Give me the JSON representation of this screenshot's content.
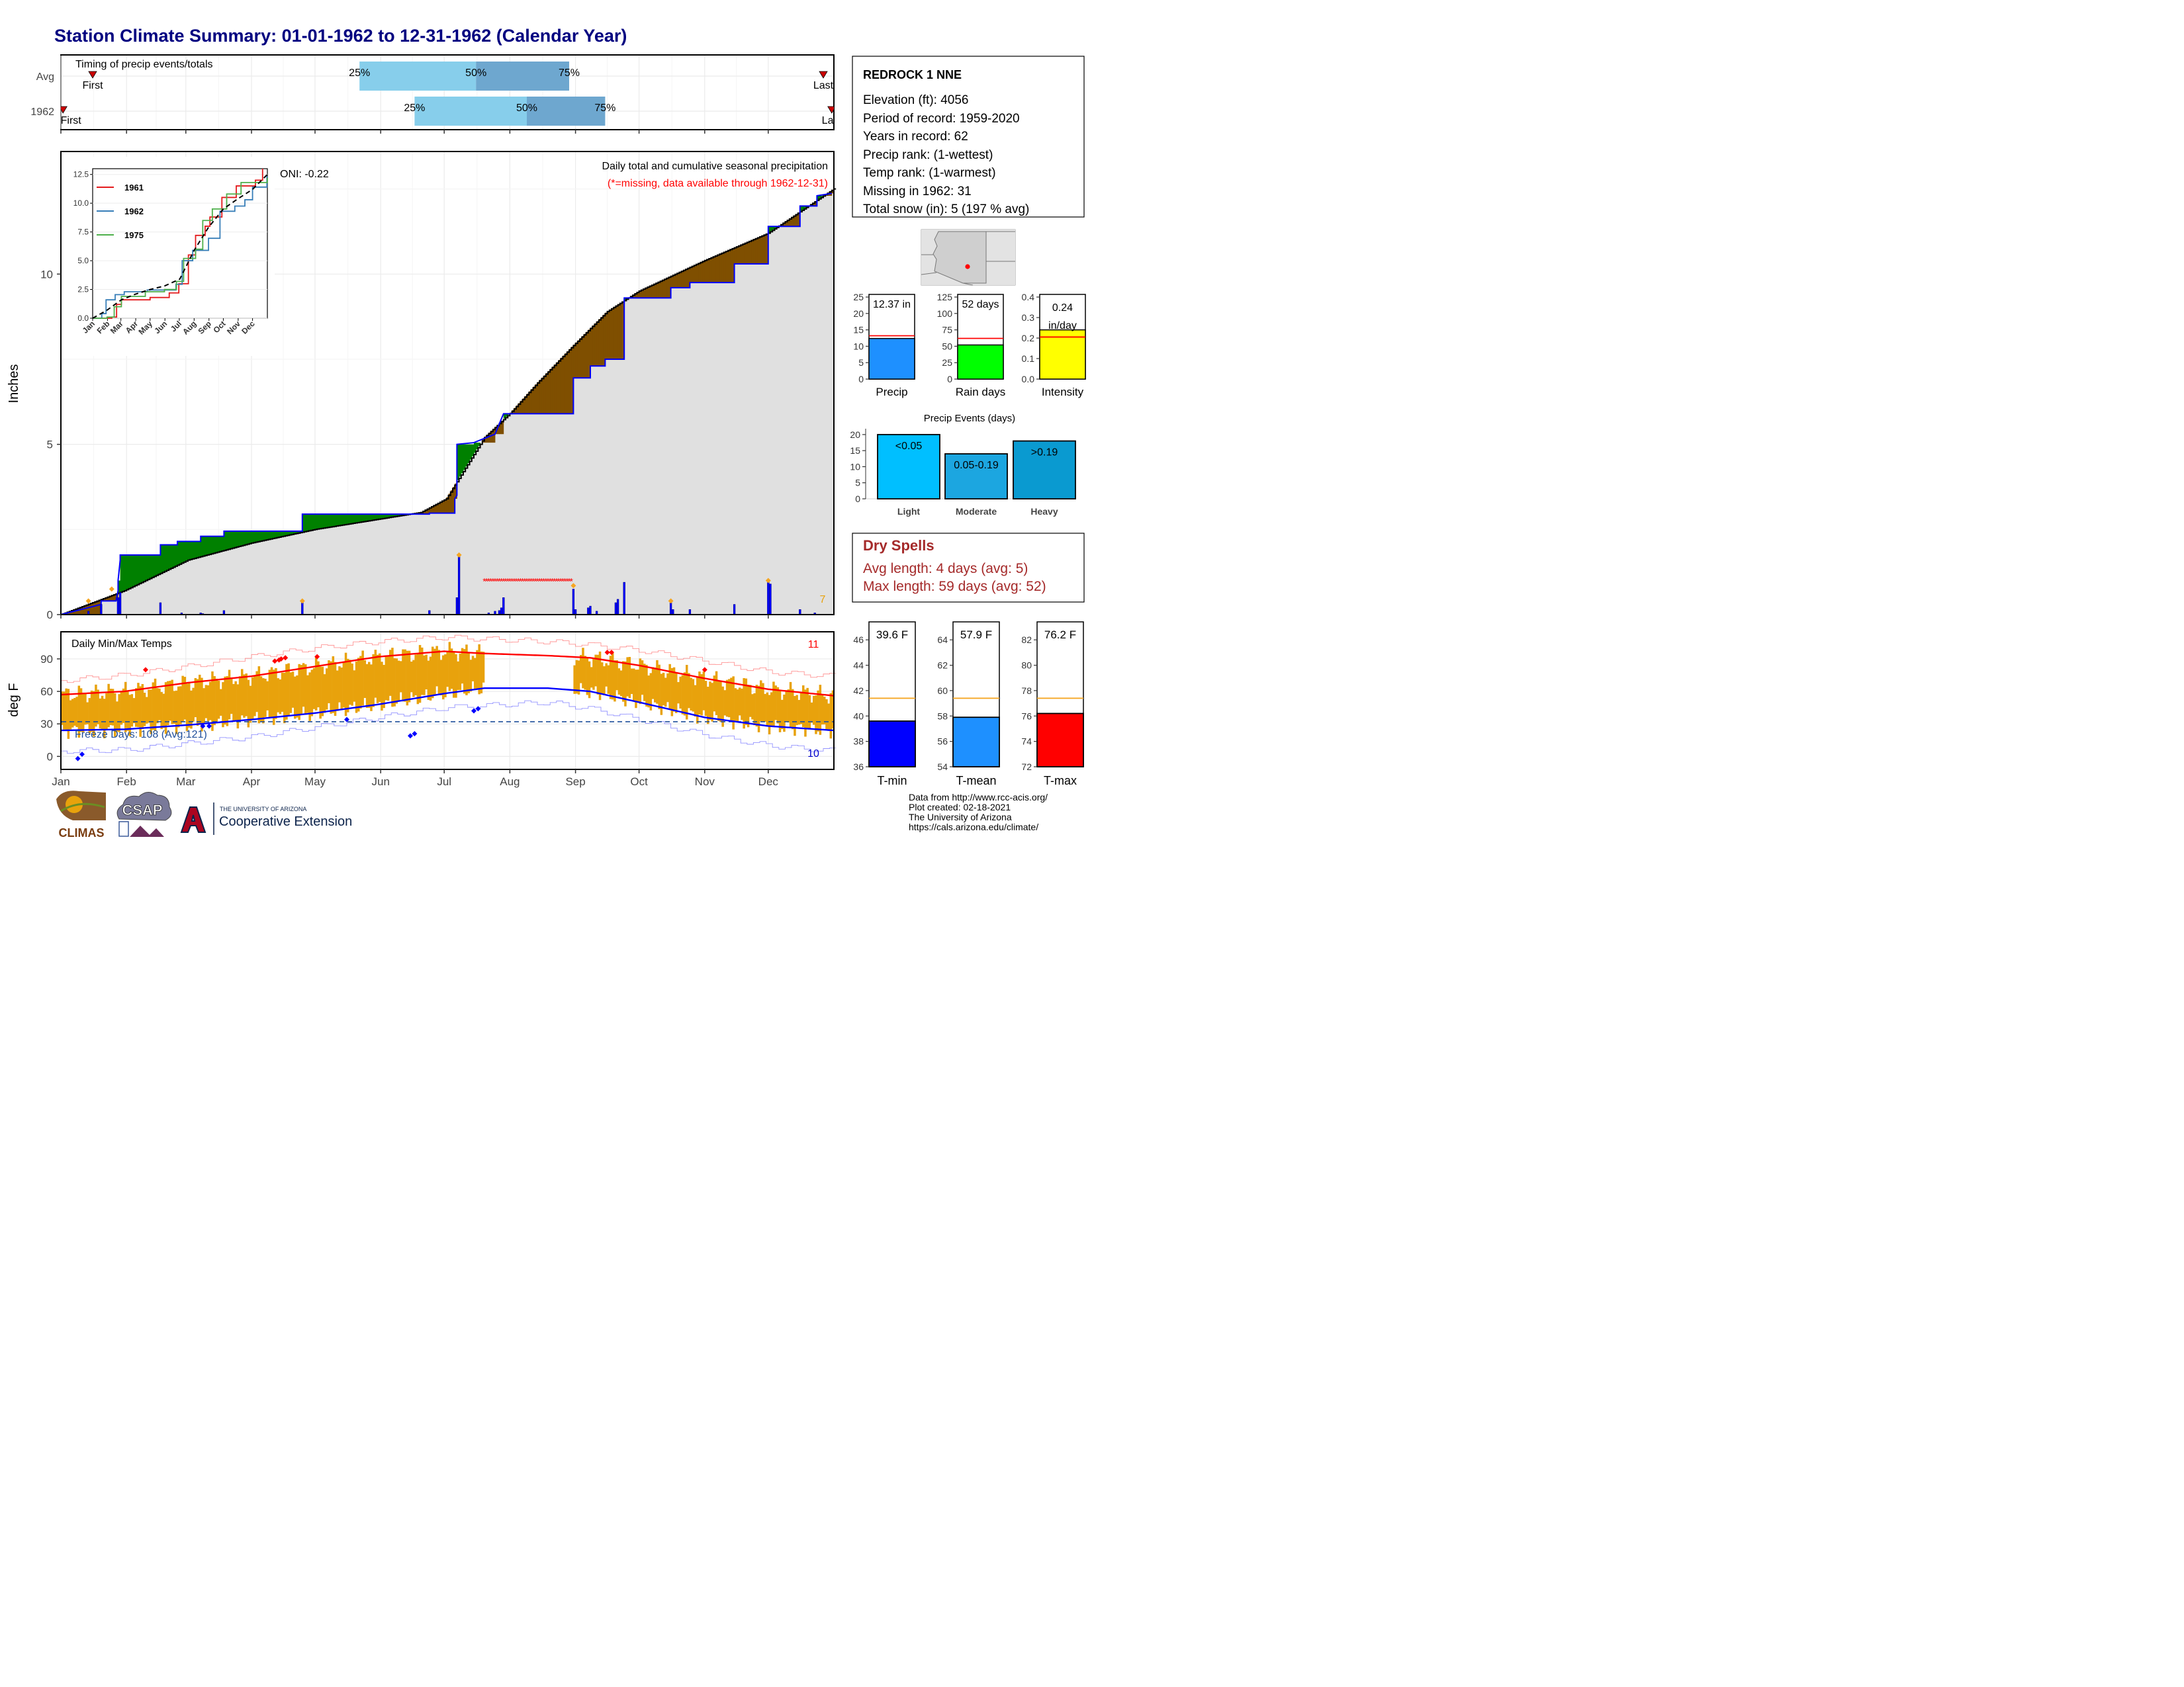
{
  "title": "Station Climate Summary: 01-01-1962 to 12-31-1962 (Calendar Year)",
  "timing": {
    "panel_title": "Timing of precip events/totals",
    "rows": [
      {
        "label": "Avg",
        "first_day": 15,
        "last_day": 360,
        "p25": 141,
        "p50": 196,
        "p75": 240,
        "first_label": "First",
        "last_label": "Last",
        "p25_label": "25%",
        "p50_label": "50%",
        "p75_label": "75%"
      },
      {
        "label": "1962",
        "first_day": 1,
        "last_day": 364,
        "p25": 167,
        "p50": 220,
        "p75": 257,
        "first_label": "First",
        "last_label": "Last",
        "p25_label": "25%",
        "p50_label": "50%",
        "p75_label": "75%"
      }
    ]
  },
  "precip_panel": {
    "ylabel": "Inches",
    "yticks": [
      0,
      5,
      10
    ],
    "ymax": 13.6,
    "oni": "ONI: -0.22",
    "note1": "Daily total and cumulative seasonal precipitation",
    "note2": "(*=missing, data available through 1962-12-31)",
    "missing_count": "7",
    "missing_period": [
      200,
      241
    ],
    "cumulative_avg": [
      [
        0,
        0
      ],
      [
        30,
        0.7
      ],
      [
        60,
        1.6
      ],
      [
        90,
        2.1
      ],
      [
        120,
        2.5
      ],
      [
        150,
        2.8
      ],
      [
        170,
        3.0
      ],
      [
        182,
        3.4
      ],
      [
        190,
        4.2
      ],
      [
        200,
        5.2
      ],
      [
        212,
        5.9
      ],
      [
        225,
        6.8
      ],
      [
        242,
        7.9
      ],
      [
        258,
        8.9
      ],
      [
        273,
        9.5
      ],
      [
        304,
        10.4
      ],
      [
        334,
        11.2
      ],
      [
        365,
        12.5
      ]
    ],
    "cumulative_1962": [
      [
        0,
        0
      ],
      [
        19,
        0.3
      ],
      [
        19,
        0.4
      ],
      [
        26,
        0.4
      ],
      [
        27,
        0.7
      ],
      [
        27,
        1.0
      ],
      [
        28,
        1.6
      ],
      [
        28,
        1.75
      ],
      [
        47,
        1.75
      ],
      [
        47,
        2.05
      ],
      [
        55,
        2.05
      ],
      [
        55,
        2.15
      ],
      [
        66,
        2.15
      ],
      [
        66,
        2.3
      ],
      [
        77,
        2.3
      ],
      [
        77,
        2.45
      ],
      [
        114,
        2.45
      ],
      [
        114,
        2.95
      ],
      [
        174,
        2.95
      ],
      [
        174,
        2.98
      ],
      [
        186,
        2.98
      ],
      [
        186,
        3.4
      ],
      [
        187,
        3.5
      ],
      [
        187,
        5.0
      ],
      [
        195,
        5.05
      ],
      [
        205,
        5.3
      ],
      [
        209,
        5.9
      ],
      [
        242,
        5.9
      ],
      [
        242,
        6.95
      ],
      [
        250,
        6.95
      ],
      [
        250,
        7.3
      ],
      [
        257,
        7.3
      ],
      [
        257,
        7.5
      ],
      [
        266,
        7.5
      ],
      [
        266,
        9.3
      ],
      [
        288,
        9.3
      ],
      [
        288,
        9.6
      ],
      [
        297,
        9.6
      ],
      [
        297,
        9.75
      ],
      [
        318,
        9.75
      ],
      [
        318,
        10.3
      ],
      [
        334,
        10.3
      ],
      [
        334,
        11.4
      ],
      [
        349,
        11.4
      ],
      [
        349,
        12.0
      ],
      [
        357,
        12.0
      ],
      [
        357,
        12.3
      ],
      [
        364,
        12.37
      ]
    ],
    "daily": [
      [
        13,
        0.1
      ],
      [
        19,
        0.3
      ],
      [
        27,
        0.5
      ],
      [
        28,
        0.65
      ],
      [
        47,
        0.35
      ],
      [
        57,
        0.05
      ],
      [
        66,
        0.05
      ],
      [
        67,
        0.03
      ],
      [
        77,
        0.12
      ],
      [
        114,
        0.35
      ],
      [
        174,
        0.12
      ],
      [
        187,
        0.5
      ],
      [
        188,
        1.7
      ],
      [
        202,
        0.05
      ],
      [
        205,
        0.1
      ],
      [
        207,
        0.12
      ],
      [
        208,
        0.2
      ],
      [
        209,
        0.5
      ],
      [
        242,
        0.75
      ],
      [
        243,
        0.15
      ],
      [
        249,
        0.2
      ],
      [
        250,
        0.25
      ],
      [
        253,
        0.1
      ],
      [
        262,
        0.35
      ],
      [
        263,
        0.45
      ],
      [
        266,
        0.95
      ],
      [
        288,
        0.35
      ],
      [
        289,
        0.15
      ],
      [
        297,
        0.15
      ],
      [
        318,
        0.3
      ],
      [
        334,
        0.95
      ],
      [
        335,
        0.9
      ],
      [
        349,
        0.15
      ],
      [
        356,
        0.05
      ]
    ],
    "highlight_points": [
      [
        13,
        0.4
      ],
      [
        24,
        0.75
      ],
      [
        114,
        0.4
      ],
      [
        188,
        1.75
      ],
      [
        242,
        0.85
      ],
      [
        288,
        0.4
      ],
      [
        334,
        1.0
      ]
    ]
  },
  "inset": {
    "yticks": [
      "0.0",
      "2.5",
      "5.0",
      "7.5",
      "10.0",
      "12.5"
    ],
    "xticks": [
      "Jan",
      "Feb",
      "Mar",
      "Apr",
      "May",
      "Jun",
      "Jul",
      "Aug",
      "Sep",
      "Oct",
      "Nov",
      "Dec"
    ],
    "legend": [
      {
        "name": "1961",
        "color": "#e41a1c"
      },
      {
        "name": "1962",
        "color": "#377eb8"
      },
      {
        "name": "1975",
        "color": "#4daf4a"
      }
    ],
    "series": [
      {
        "name": "1961",
        "points": [
          [
            0,
            0
          ],
          [
            40,
            0.1
          ],
          [
            50,
            1.2
          ],
          [
            60,
            1.6
          ],
          [
            120,
            1.8
          ],
          [
            160,
            2.2
          ],
          [
            180,
            3.0
          ],
          [
            200,
            5.5
          ],
          [
            215,
            7.2
          ],
          [
            235,
            8.0
          ],
          [
            245,
            8.8
          ],
          [
            270,
            10.5
          ],
          [
            300,
            11.5
          ],
          [
            340,
            12.0
          ],
          [
            355,
            13.0
          ]
        ]
      },
      {
        "name": "1962",
        "points": [
          [
            0,
            0
          ],
          [
            19,
            0.4
          ],
          [
            28,
            1.6
          ],
          [
            47,
            2.05
          ],
          [
            66,
            2.3
          ],
          [
            114,
            2.45
          ],
          [
            174,
            2.95
          ],
          [
            187,
            5.0
          ],
          [
            209,
            5.9
          ],
          [
            242,
            6.95
          ],
          [
            266,
            9.3
          ],
          [
            297,
            9.75
          ],
          [
            318,
            10.3
          ],
          [
            334,
            11.4
          ],
          [
            364,
            12.37
          ]
        ]
      },
      {
        "name": "1975",
        "points": [
          [
            0,
            0
          ],
          [
            30,
            0.1
          ],
          [
            45,
            1.0
          ],
          [
            60,
            1.9
          ],
          [
            110,
            2.3
          ],
          [
            150,
            2.5
          ],
          [
            175,
            3.2
          ],
          [
            190,
            5.2
          ],
          [
            215,
            6.0
          ],
          [
            230,
            8.5
          ],
          [
            250,
            9.5
          ],
          [
            280,
            10.8
          ],
          [
            310,
            11.8
          ],
          [
            365,
            12.2
          ]
        ]
      },
      {
        "name": "avg",
        "points": [
          [
            0,
            0
          ],
          [
            30,
            0.7
          ],
          [
            60,
            1.6
          ],
          [
            90,
            2.1
          ],
          [
            120,
            2.5
          ],
          [
            150,
            2.8
          ],
          [
            182,
            3.4
          ],
          [
            212,
            5.9
          ],
          [
            242,
            7.9
          ],
          [
            273,
            9.5
          ],
          [
            304,
            10.4
          ],
          [
            334,
            11.2
          ],
          [
            365,
            12.5
          ]
        ]
      }
    ]
  },
  "temp_panel": {
    "ylabel": "deg F",
    "title": "Daily Min/Max Temps",
    "yticks": [
      0,
      30,
      60,
      90
    ],
    "freeze_label": "Freeze Days: 108 (Avg:121)",
    "max_count": "11",
    "min_count": "10",
    "freeze_line": 32,
    "missing_period": [
      200,
      241
    ],
    "xticks": [
      "Jan",
      "Feb",
      "Mar",
      "Apr",
      "May",
      "Jun",
      "Jul",
      "Aug",
      "Sep",
      "Oct",
      "Nov",
      "Dec"
    ],
    "month_starts": [
      0,
      31,
      59,
      90,
      120,
      151,
      181,
      212,
      243,
      273,
      304,
      334
    ],
    "avg_max": [
      [
        0,
        57
      ],
      [
        30,
        60
      ],
      [
        60,
        68
      ],
      [
        90,
        74
      ],
      [
        120,
        83
      ],
      [
        150,
        92
      ],
      [
        181,
        97
      ],
      [
        200,
        95
      ],
      [
        230,
        93
      ],
      [
        250,
        91
      ],
      [
        273,
        84
      ],
      [
        304,
        72
      ],
      [
        334,
        62
      ],
      [
        365,
        56
      ]
    ],
    "avg_min": [
      [
        0,
        24
      ],
      [
        30,
        25
      ],
      [
        60,
        29
      ],
      [
        90,
        34
      ],
      [
        120,
        40
      ],
      [
        150,
        48
      ],
      [
        181,
        58
      ],
      [
        200,
        63
      ],
      [
        230,
        63
      ],
      [
        250,
        60
      ],
      [
        273,
        50
      ],
      [
        304,
        36
      ],
      [
        334,
        28
      ],
      [
        365,
        24
      ]
    ],
    "rec_max": [
      [
        0,
        70
      ],
      [
        30,
        75
      ],
      [
        60,
        83
      ],
      [
        90,
        92
      ],
      [
        120,
        100
      ],
      [
        150,
        106
      ],
      [
        181,
        110
      ],
      [
        230,
        106
      ],
      [
        250,
        103
      ],
      [
        273,
        98
      ],
      [
        304,
        88
      ],
      [
        334,
        78
      ],
      [
        365,
        74
      ]
    ],
    "rec_min": [
      [
        0,
        5
      ],
      [
        30,
        6
      ],
      [
        60,
        12
      ],
      [
        90,
        18
      ],
      [
        120,
        27
      ],
      [
        150,
        36
      ],
      [
        181,
        45
      ],
      [
        230,
        50
      ],
      [
        250,
        44
      ],
      [
        273,
        34
      ],
      [
        304,
        20
      ],
      [
        334,
        10
      ],
      [
        365,
        5
      ]
    ],
    "record_max_points": [
      [
        40,
        80
      ],
      [
        101,
        88
      ],
      [
        103,
        89
      ],
      [
        104,
        90
      ],
      [
        106,
        91
      ],
      [
        121,
        92
      ],
      [
        258,
        96
      ],
      [
        260,
        96
      ],
      [
        304,
        80
      ]
    ],
    "record_min_points": [
      [
        8,
        -2
      ],
      [
        10,
        2
      ],
      [
        67,
        28
      ],
      [
        70,
        28
      ],
      [
        135,
        34
      ],
      [
        165,
        19
      ],
      [
        167,
        21
      ],
      [
        195,
        42
      ],
      [
        197,
        44
      ]
    ]
  },
  "station": {
    "name": "REDROCK 1 NNE",
    "lines": [
      "Elevation (ft): 4056",
      "Period of record: 1959-2020",
      "Years in record: 62",
      "Precip rank:  (1-wettest)",
      "Temp rank:  (1-warmest)",
      "Missing in 1962: 31",
      "Total snow (in): 5 (197 % avg)"
    ]
  },
  "precip_bars": [
    {
      "label": "Precip",
      "value": 12.37,
      "text": "12.37 in",
      "avg": 13.2,
      "max": 25,
      "ticks": [
        "0",
        "5",
        "10",
        "15",
        "20",
        "25"
      ],
      "color": "#1e90ff"
    },
    {
      "label": "Rain days",
      "value": 52,
      "text": "52 days",
      "avg": 62,
      "max": 125,
      "ticks": [
        "0",
        "25",
        "50",
        "75",
        "100",
        "125"
      ],
      "color": "#00ff00"
    },
    {
      "label": "Intensity",
      "value": 0.24,
      "text": "0.24 in/day",
      "text1": "0.24",
      "text2": "in/day",
      "avg": 0.205,
      "max": 0.4,
      "ticks": [
        "0.0",
        "0.1",
        "0.2",
        "0.3",
        "0.4"
      ],
      "color": "#ffff00"
    }
  ],
  "events": {
    "title": "Precip Events (days)",
    "ticks": [
      "0",
      "5",
      "10",
      "15",
      "20"
    ],
    "max": 21,
    "bars": [
      {
        "label": "Light",
        "value": 20,
        "text": "<0.05",
        "color": "#00bfff"
      },
      {
        "label": "Moderate",
        "value": 14,
        "text": "0.05-0.19",
        "color": "#1ca6e0"
      },
      {
        "label": "Heavy",
        "value": 18,
        "text": ">0.19",
        "color": "#0a9ad0"
      }
    ]
  },
  "dry_spells": {
    "title": "Dry Spells",
    "line1": "Avg length: 4 days (avg: 5)",
    "line2": "Max length: 59 days (avg: 52)"
  },
  "temp_bars": [
    {
      "label": "T-min",
      "value": 39.6,
      "text": "39.6 F",
      "avg": 41.4,
      "min": 36,
      "max": 47,
      "ticks": [
        "36",
        "38",
        "40",
        "42",
        "44",
        "46"
      ],
      "color": "#0000ff"
    },
    {
      "label": "T-mean",
      "value": 57.9,
      "text": "57.9 F",
      "avg": 59.4,
      "min": 54,
      "max": 65,
      "ticks": [
        "54",
        "56",
        "58",
        "60",
        "62",
        "64"
      ],
      "color": "#1e90ff"
    },
    {
      "label": "T-max",
      "value": 76.2,
      "text": "76.2 F",
      "avg": 77.4,
      "min": 72,
      "max": 83,
      "ticks": [
        "72",
        "74",
        "76",
        "78",
        "80",
        "82"
      ],
      "color": "#ff0000"
    }
  ],
  "footer": {
    "line1": "Data from http://www.rcc-acis.org/",
    "line2": "Plot created: 02-18-2021",
    "line3": "The University of Arizona",
    "line4": "https://cals.arizona.edu/climate/"
  },
  "logos": {
    "climas": "CLIMAS",
    "csap": "CSAP",
    "ua_small": "THE UNIVERSITY OF ARIZONA",
    "ua_big": "Cooperative Extension"
  },
  "colors": {
    "title": "#000080",
    "cum_above": "#008000",
    "cum_below": "#7f4f00",
    "cum_line": "#0000ff",
    "fill_grey": "#e0e0e0",
    "temp_bar": "#e8a20c",
    "dry_title": "#a52a2a",
    "missing": "#ff0000"
  }
}
